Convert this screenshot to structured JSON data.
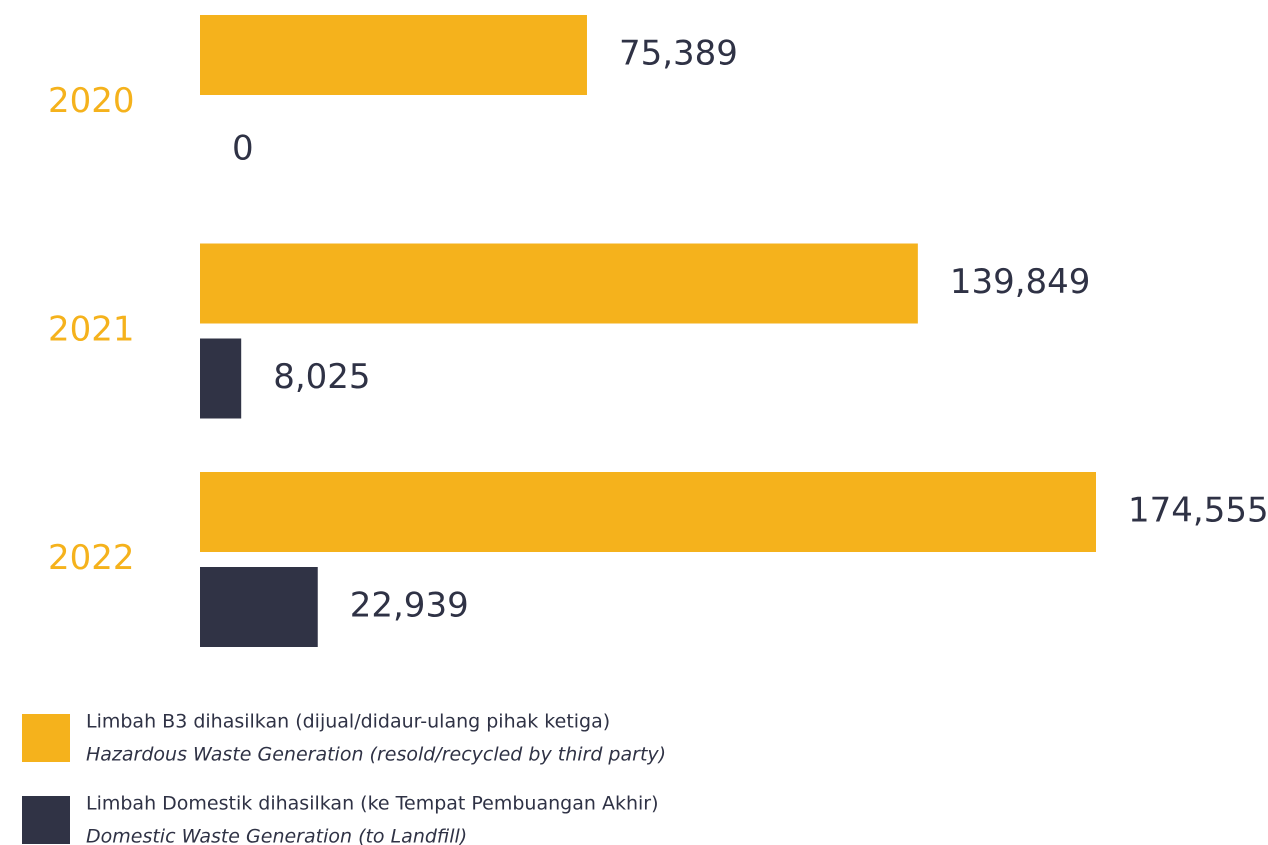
{
  "chart_data": {
    "type": "bar",
    "orientation": "horizontal",
    "categories": [
      "2020",
      "2021",
      "2022"
    ],
    "series": [
      {
        "name": "Limbah B3 dihasilkan (dijual/didaur-ulang pihak ketiga)",
        "name_en": "Hazardous Waste Generation (resold/recycled by third party)",
        "color": "#f5b21c",
        "values": [
          75389,
          139849,
          174555
        ],
        "value_labels": [
          "75,389",
          "139,849",
          "174,555"
        ]
      },
      {
        "name": "Limbah Domestik dihasilkan (ke Tempat Pembuangan Akhir)",
        "name_en": "Domestic Waste Generation (to Landfill)",
        "color": "#303345",
        "values": [
          0,
          8025,
          22939
        ],
        "value_labels": [
          "0",
          "8,025",
          "22,939"
        ]
      }
    ]
  }
}
